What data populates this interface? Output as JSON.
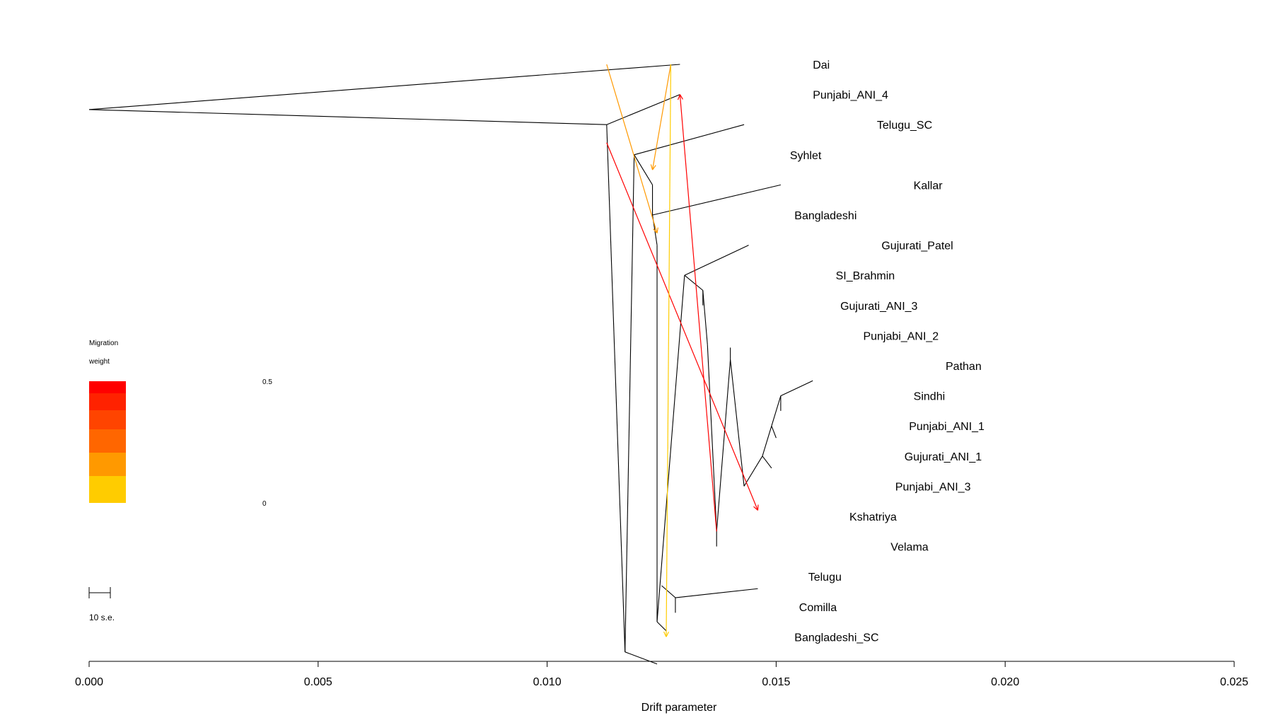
{
  "chart_data": {
    "type": "tree",
    "xlabel": "Drift parameter",
    "xlim": [
      0,
      0.025
    ],
    "x_ticks": [
      "0.000",
      "0.005",
      "0.010",
      "0.015",
      "0.020",
      "0.025"
    ],
    "grid": false,
    "leaves": [
      {
        "name": "Dai",
        "drift": 0.0129,
        "label_drift": 0.0158
      },
      {
        "name": "Punjabi_ANI_4",
        "drift": 0.0129,
        "label_drift": 0.0158
      },
      {
        "name": "Telugu_SC",
        "drift": 0.0143,
        "label_drift": 0.0172
      },
      {
        "name": "Syhlet",
        "drift": 0.0124,
        "label_drift": 0.0153
      },
      {
        "name": "Kallar",
        "drift": 0.0151,
        "label_drift": 0.018
      },
      {
        "name": "Bangladeshi",
        "drift": 0.0125,
        "label_drift": 0.0154
      },
      {
        "name": "Gujurati_Patel",
        "drift": 0.0144,
        "label_drift": 0.0173
      },
      {
        "name": "SI_Brahmin",
        "drift": 0.0134,
        "label_drift": 0.0163
      },
      {
        "name": "Gujurati_ANI_3",
        "drift": 0.0135,
        "label_drift": 0.0164
      },
      {
        "name": "Punjabi_ANI_2",
        "drift": 0.014,
        "label_drift": 0.0169
      },
      {
        "name": "Pathan",
        "drift": 0.0158,
        "label_drift": 0.0187
      },
      {
        "name": "Sindhi",
        "drift": 0.0151,
        "label_drift": 0.018
      },
      {
        "name": "Punjabi_ANI_1",
        "drift": 0.015,
        "label_drift": 0.0179
      },
      {
        "name": "Gujurati_ANI_1",
        "drift": 0.0149,
        "label_drift": 0.0178
      },
      {
        "name": "Punjabi_ANI_3",
        "drift": 0.0147,
        "label_drift": 0.0176
      },
      {
        "name": "Kshatriya",
        "drift": 0.0137,
        "label_drift": 0.0166
      },
      {
        "name": "Velama",
        "drift": 0.0146,
        "label_drift": 0.0175
      },
      {
        "name": "Telugu",
        "drift": 0.0128,
        "label_drift": 0.0157
      },
      {
        "name": "Comilla",
        "drift": 0.0126,
        "label_drift": 0.0155
      },
      {
        "name": "Bangladeshi_SC",
        "drift": 0.0124,
        "label_drift": 0.0154
      }
    ],
    "edges": [
      {
        "from": [
          0.0,
          1.5
        ],
        "to": [
          0.0129,
          0
        ]
      },
      {
        "from": [
          0.0,
          1.5
        ],
        "to": [
          0.0113,
          2
        ]
      },
      {
        "from": [
          0.0113,
          2
        ],
        "to": [
          0.0129,
          1
        ]
      },
      {
        "from": [
          0.0113,
          2
        ],
        "to": [
          0.0117,
          19.5
        ]
      },
      {
        "from": [
          0.0117,
          19.5
        ],
        "to": [
          0.0124,
          19.9
        ]
      },
      {
        "from": [
          0.0117,
          19.5
        ],
        "to": [
          0.0119,
          3
        ]
      },
      {
        "from": [
          0.0119,
          3
        ],
        "to": [
          0.0143,
          2
        ]
      },
      {
        "from": [
          0.0119,
          3
        ],
        "to": [
          0.0123,
          4
        ]
      },
      {
        "from": [
          0.0123,
          4
        ],
        "to": [
          0.0123,
          5
        ]
      },
      {
        "from": [
          0.0123,
          5
        ],
        "to": [
          0.0151,
          4
        ]
      },
      {
        "from": [
          0.0123,
          5
        ],
        "to": [
          0.0124,
          6
        ]
      },
      {
        "from": [
          0.0124,
          6
        ],
        "to": [
          0.0124,
          18.5
        ]
      },
      {
        "from": [
          0.0124,
          18.5
        ],
        "to": [
          0.0126,
          18.8
        ]
      },
      {
        "from": [
          0.0124,
          18.5
        ],
        "to": [
          0.013,
          7
        ]
      },
      {
        "from": [
          0.013,
          7
        ],
        "to": [
          0.0144,
          6
        ]
      },
      {
        "from": [
          0.013,
          7
        ],
        "to": [
          0.0134,
          7.5
        ]
      },
      {
        "from": [
          0.0134,
          7.5
        ],
        "to": [
          0.0134,
          8
        ]
      },
      {
        "from": [
          0.0134,
          7.5
        ],
        "to": [
          0.0135,
          9.3
        ]
      },
      {
        "from": [
          0.0135,
          9.3
        ],
        "to": [
          0.0137,
          15.5
        ]
      },
      {
        "from": [
          0.0137,
          15.5
        ],
        "to": [
          0.0137,
          16
        ]
      },
      {
        "from": [
          0.0137,
          15.5
        ],
        "to": [
          0.014,
          9.8
        ]
      },
      {
        "from": [
          0.014,
          9.8
        ],
        "to": [
          0.014,
          9.4
        ]
      },
      {
        "from": [
          0.014,
          9.8
        ],
        "to": [
          0.0143,
          14
        ]
      },
      {
        "from": [
          0.0143,
          14
        ],
        "to": [
          0.0147,
          13
        ]
      },
      {
        "from": [
          0.0147,
          13
        ],
        "to": [
          0.0149,
          13.4
        ]
      },
      {
        "from": [
          0.0147,
          13
        ],
        "to": [
          0.0149,
          12
        ]
      },
      {
        "from": [
          0.0149,
          12
        ],
        "to": [
          0.015,
          12.4
        ]
      },
      {
        "from": [
          0.0149,
          12
        ],
        "to": [
          0.0151,
          11
        ]
      },
      {
        "from": [
          0.0151,
          11
        ],
        "to": [
          0.0151,
          11.5
        ]
      },
      {
        "from": [
          0.0151,
          11
        ],
        "to": [
          0.0158,
          10.5
        ]
      },
      {
        "from": [
          0.0125,
          17.3
        ],
        "to": [
          0.0128,
          17.7
        ]
      },
      {
        "from": [
          0.0128,
          17.7
        ],
        "to": [
          0.0146,
          17.4
        ]
      },
      {
        "from": [
          0.0128,
          17.7
        ],
        "to": [
          0.0128,
          18.2
        ]
      }
    ],
    "migration_edges": [
      {
        "from": [
          0.0113,
          2.6
        ],
        "to": [
          0.0146,
          14.8
        ],
        "weight": 0.5
      },
      {
        "from": [
          0.0137,
          15.5
        ],
        "to": [
          0.0129,
          1
        ],
        "weight": 0.47
      },
      {
        "from": [
          0.0113,
          0
        ],
        "to": [
          0.0124,
          5.6
        ],
        "weight": 0.15
      },
      {
        "from": [
          0.0127,
          0
        ],
        "to": [
          0.0123,
          3.5
        ],
        "weight": 0.1
      },
      {
        "from": [
          0.0127,
          0
        ],
        "to": [
          0.0126,
          19
        ],
        "weight": 0.05
      }
    ],
    "legend": {
      "title": [
        "Migration",
        "weight"
      ],
      "max_label": "0.5",
      "min_label": "0",
      "colors": [
        "#ff0000",
        "#ff2200",
        "#ff4400",
        "#ff6600",
        "#ff9900",
        "#ffcc00"
      ]
    },
    "scale_bar": {
      "label": "10 s.e."
    }
  }
}
